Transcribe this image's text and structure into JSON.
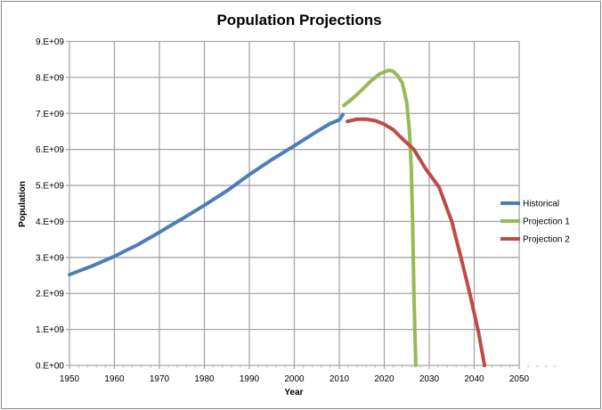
{
  "chart_data": {
    "type": "line",
    "title": "Population Projections",
    "xlabel": "Year",
    "ylabel": "Population",
    "xlim": [
      1950,
      2050
    ],
    "ylim": [
      0,
      9000000000
    ],
    "x_ticks": [
      "1950",
      "1960",
      "1970",
      "1980",
      "1990",
      "2000",
      "2010",
      "2020",
      "2030",
      "2040",
      "2050"
    ],
    "y_ticks": [
      "0.E+00",
      "1.E+09",
      "2.E+09",
      "3.E+09",
      "4.E+09",
      "5.E+09",
      "6.E+09",
      "7.E+09",
      "8.E+09",
      "9.E+09"
    ],
    "grid": true,
    "legend_position": "right",
    "series": [
      {
        "name": "Historical",
        "color": "#4a7ebb",
        "points": [
          [
            1950,
            2520000000.0
          ],
          [
            1952,
            2620000000.0
          ],
          [
            1955,
            2760000000.0
          ],
          [
            1960,
            3030000000.0
          ],
          [
            1963,
            3220000000.0
          ],
          [
            1965,
            3340000000.0
          ],
          [
            1970,
            3700000000.0
          ],
          [
            1972,
            3850000000.0
          ],
          [
            1975,
            4070000000.0
          ],
          [
            1980,
            4450000000.0
          ],
          [
            1985,
            4850000000.0
          ],
          [
            1990,
            5300000000.0
          ],
          [
            1995,
            5720000000.0
          ],
          [
            2000,
            6100000000.0
          ],
          [
            2005,
            6500000000.0
          ],
          [
            2008,
            6720000000.0
          ],
          [
            2010,
            6820000000.0
          ],
          [
            2010.8,
            6970000000.0
          ]
        ]
      },
      {
        "name": "Projection 1",
        "color": "#98b954",
        "points": [
          [
            2011,
            7220000000.0
          ],
          [
            2013,
            7420000000.0
          ],
          [
            2015,
            7650000000.0
          ],
          [
            2017,
            7900000000.0
          ],
          [
            2019,
            8100000000.0
          ],
          [
            2021,
            8200000000.0
          ],
          [
            2022,
            8170000000.0
          ],
          [
            2023,
            8050000000.0
          ],
          [
            2024,
            7850000000.0
          ],
          [
            2025,
            7300000000.0
          ],
          [
            2025.6,
            6500000000.0
          ],
          [
            2026,
            5500000000.0
          ],
          [
            2026.3,
            4000000000.0
          ],
          [
            2026.6,
            2000000000.0
          ],
          [
            2027,
            0
          ]
        ]
      },
      {
        "name": "Projection 2",
        "color": "#be4b48",
        "points": [
          [
            2011.8,
            6780000000.0
          ],
          [
            2014,
            6840000000.0
          ],
          [
            2016,
            6840000000.0
          ],
          [
            2018,
            6800000000.0
          ],
          [
            2020,
            6700000000.0
          ],
          [
            2022,
            6550000000.0
          ],
          [
            2024,
            6300000000.0
          ],
          [
            2026.6,
            6000000000.0
          ],
          [
            2029,
            5500000000.0
          ],
          [
            2032.2,
            4950000000.0
          ],
          [
            2035,
            4000000000.0
          ],
          [
            2037.1,
            2970000000.0
          ],
          [
            2039,
            2000000000.0
          ],
          [
            2041,
            900000000.0
          ],
          [
            2042.3,
            0
          ]
        ]
      }
    ]
  }
}
